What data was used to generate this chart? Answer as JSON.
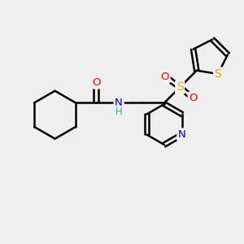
{
  "bg_color": "#efefef",
  "bond_color": "#000000",
  "bond_width": 1.8,
  "atom_colors": {
    "O": "#ff0000",
    "N": "#0000cd",
    "S_sulfonyl": "#e8b800",
    "S_thio": "#ccaa00",
    "H": "#20b2aa",
    "C": "#000000"
  }
}
